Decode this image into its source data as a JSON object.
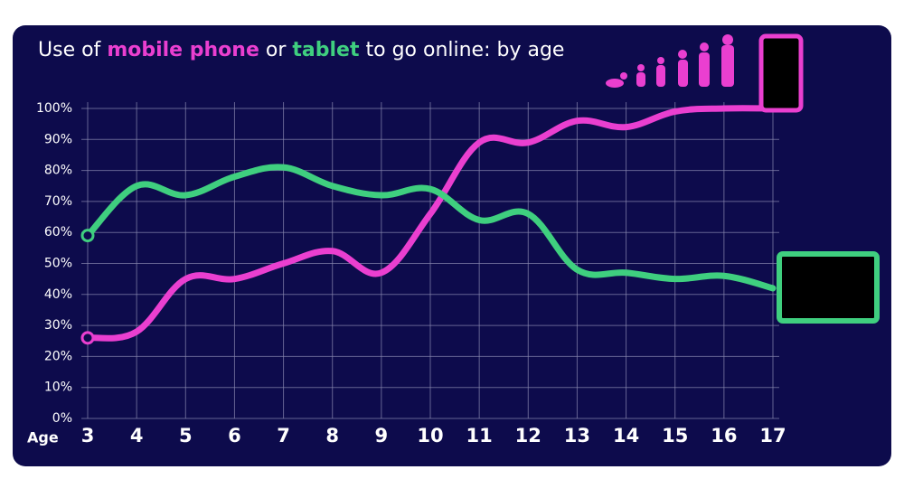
{
  "chart_data": {
    "type": "line",
    "title_start": "Use of",
    "title_middle": "or",
    "title_end": "to go online: by age",
    "xlabel": "Age",
    "x": [
      3,
      4,
      5,
      6,
      7,
      8,
      9,
      10,
      11,
      12,
      13,
      14,
      15,
      16,
      17
    ],
    "xlim": [
      3,
      17
    ],
    "xticks": [
      3,
      4,
      5,
      6,
      7,
      8,
      9,
      10,
      11,
      12,
      13,
      14,
      15,
      16,
      17
    ],
    "ylim": [
      0,
      100
    ],
    "yticks": [
      {
        "value": 0,
        "label": "0%"
      },
      {
        "value": 10,
        "label": "10%"
      },
      {
        "value": 20,
        "label": "20%"
      },
      {
        "value": 30,
        "label": "30%"
      },
      {
        "value": 40,
        "label": "40%"
      },
      {
        "value": 50,
        "label": "50%"
      },
      {
        "value": 60,
        "label": "60%"
      },
      {
        "value": 70,
        "label": "70%"
      },
      {
        "value": 80,
        "label": "80%"
      },
      {
        "value": 90,
        "label": "90%"
      },
      {
        "value": 100,
        "label": "100%"
      }
    ],
    "grid": true,
    "series": [
      {
        "name": "mobile phone",
        "color": "#ea3fd0",
        "values": [
          26,
          28,
          45,
          45,
          50,
          54,
          47,
          66,
          89,
          89,
          96,
          94,
          99,
          100,
          100
        ]
      },
      {
        "name": "tablet",
        "color": "#3fcf7f",
        "values": [
          59,
          75,
          72,
          78,
          81,
          75,
          72,
          74,
          64,
          66,
          48,
          47,
          45,
          46,
          42
        ]
      }
    ]
  }
}
